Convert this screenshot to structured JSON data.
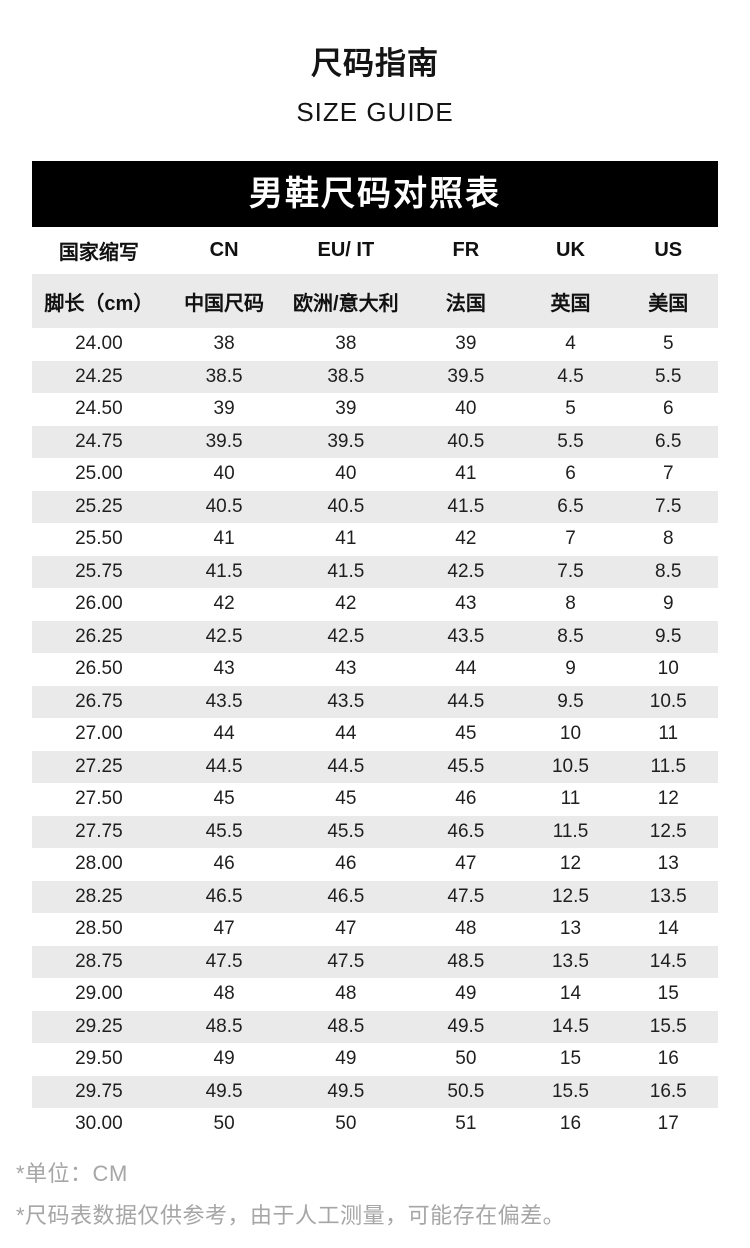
{
  "page": {
    "title": "尺码指南",
    "subtitle": "SIZE GUIDE"
  },
  "table": {
    "banner": "男鞋尺码对照表",
    "header_row_1": [
      "国家缩写",
      "CN",
      "EU/ IT",
      "FR",
      "UK",
      "US"
    ],
    "header_row_2": [
      "脚长（cm）",
      "中国尺码",
      "欧洲/意大利",
      "法国",
      "英国",
      "美国"
    ],
    "rows": [
      [
        "24.00",
        "38",
        "38",
        "39",
        "4",
        "5"
      ],
      [
        "24.25",
        "38.5",
        "38.5",
        "39.5",
        "4.5",
        "5.5"
      ],
      [
        "24.50",
        "39",
        "39",
        "40",
        "5",
        "6"
      ],
      [
        "24.75",
        "39.5",
        "39.5",
        "40.5",
        "5.5",
        "6.5"
      ],
      [
        "25.00",
        "40",
        "40",
        "41",
        "6",
        "7"
      ],
      [
        "25.25",
        "40.5",
        "40.5",
        "41.5",
        "6.5",
        "7.5"
      ],
      [
        "25.50",
        "41",
        "41",
        "42",
        "7",
        "8"
      ],
      [
        "25.75",
        "41.5",
        "41.5",
        "42.5",
        "7.5",
        "8.5"
      ],
      [
        "26.00",
        "42",
        "42",
        "43",
        "8",
        "9"
      ],
      [
        "26.25",
        "42.5",
        "42.5",
        "43.5",
        "8.5",
        "9.5"
      ],
      [
        "26.50",
        "43",
        "43",
        "44",
        "9",
        "10"
      ],
      [
        "26.75",
        "43.5",
        "43.5",
        "44.5",
        "9.5",
        "10.5"
      ],
      [
        "27.00",
        "44",
        "44",
        "45",
        "10",
        "11"
      ],
      [
        "27.25",
        "44.5",
        "44.5",
        "45.5",
        "10.5",
        "11.5"
      ],
      [
        "27.50",
        "45",
        "45",
        "46",
        "11",
        "12"
      ],
      [
        "27.75",
        "45.5",
        "45.5",
        "46.5",
        "11.5",
        "12.5"
      ],
      [
        "28.00",
        "46",
        "46",
        "47",
        "12",
        "13"
      ],
      [
        "28.25",
        "46.5",
        "46.5",
        "47.5",
        "12.5",
        "13.5"
      ],
      [
        "28.50",
        "47",
        "47",
        "48",
        "13",
        "14"
      ],
      [
        "28.75",
        "47.5",
        "47.5",
        "48.5",
        "13.5",
        "14.5"
      ],
      [
        "29.00",
        "48",
        "48",
        "49",
        "14",
        "15"
      ],
      [
        "29.25",
        "48.5",
        "48.5",
        "49.5",
        "14.5",
        "15.5"
      ],
      [
        "29.50",
        "49",
        "49",
        "50",
        "15",
        "16"
      ],
      [
        "29.75",
        "49.5",
        "49.5",
        "50.5",
        "15.5",
        "16.5"
      ],
      [
        "30.00",
        "50",
        "50",
        "51",
        "16",
        "17"
      ]
    ]
  },
  "footnotes": {
    "unit_note": "*单位：CM",
    "disclaimer_note": "*尺码表数据仅供参考，由于人工测量，可能存在偏差。"
  },
  "colors": {
    "banner_bg": "#000000",
    "banner_text": "#ffffff",
    "stripe": "#eaeaea",
    "footnote_text": "#a6a6a6"
  }
}
